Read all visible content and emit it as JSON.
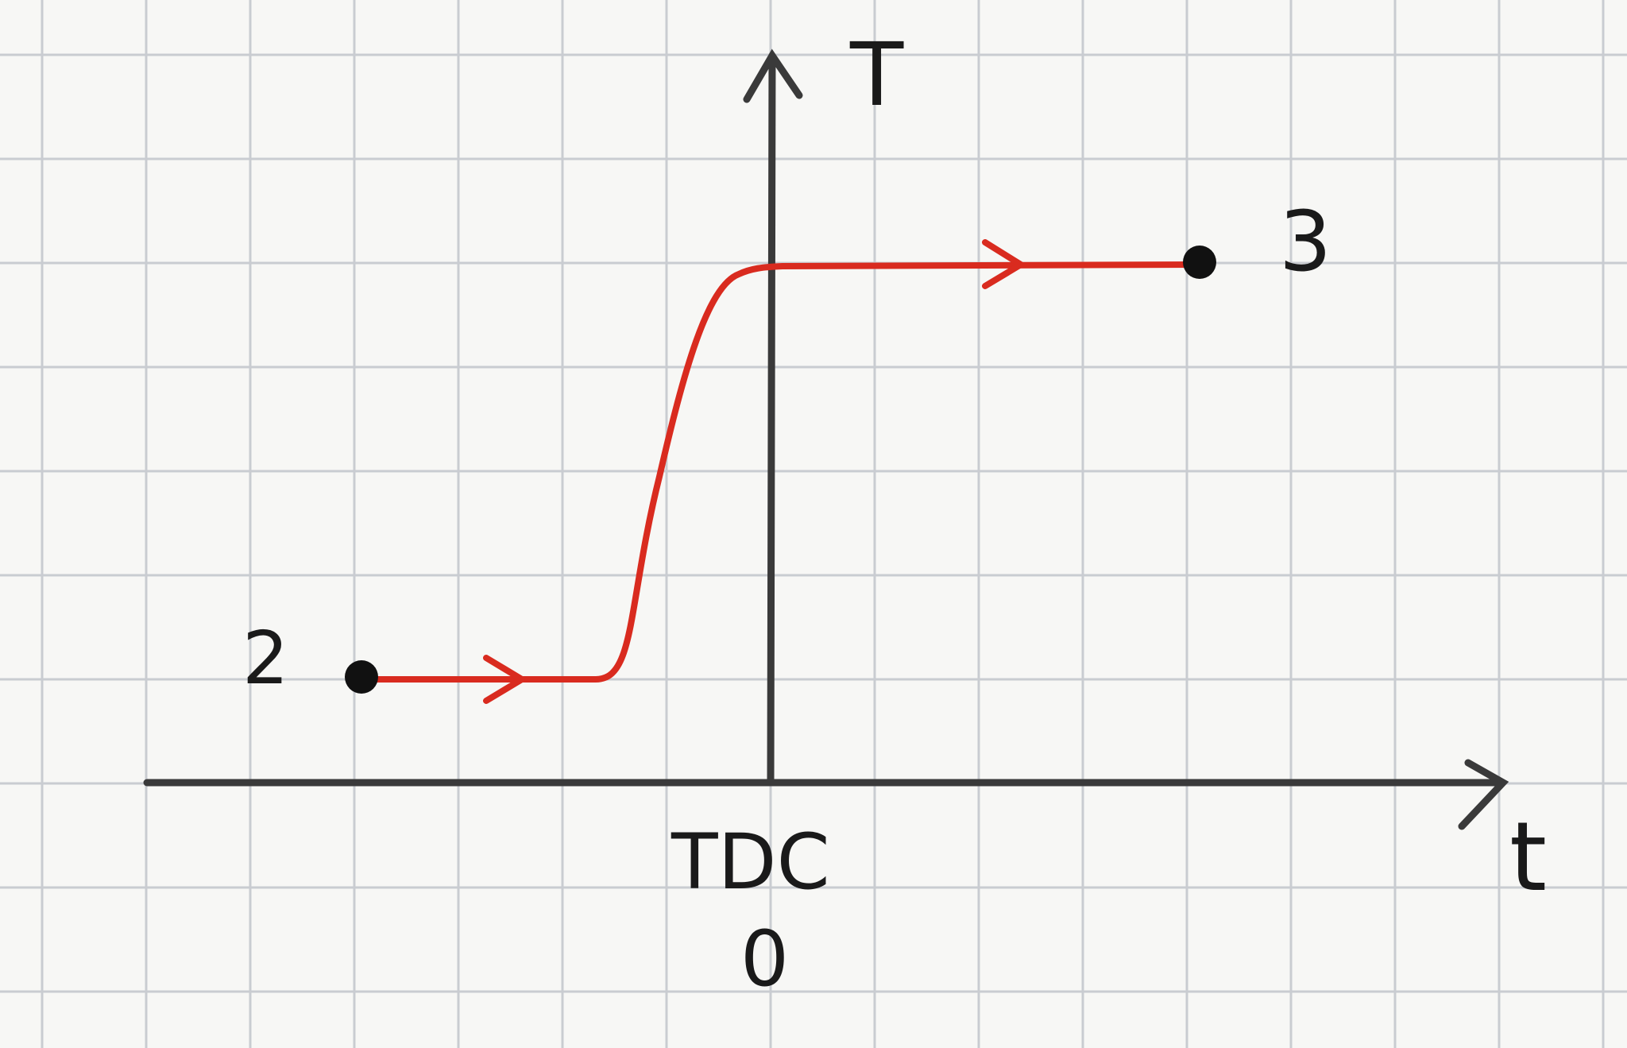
{
  "diagram": {
    "type": "line",
    "axes": {
      "y_label": "T",
      "x_label": "t",
      "origin_marker": "TDC",
      "origin_value": "0"
    },
    "points": [
      {
        "label": "2"
      },
      {
        "label": "3"
      }
    ],
    "colors": {
      "paper": "#f7f7f5",
      "grid": "#c9ccd1",
      "axis": "#3a3a3a",
      "curve": "#d92b1f",
      "ink": "#111111"
    }
  }
}
